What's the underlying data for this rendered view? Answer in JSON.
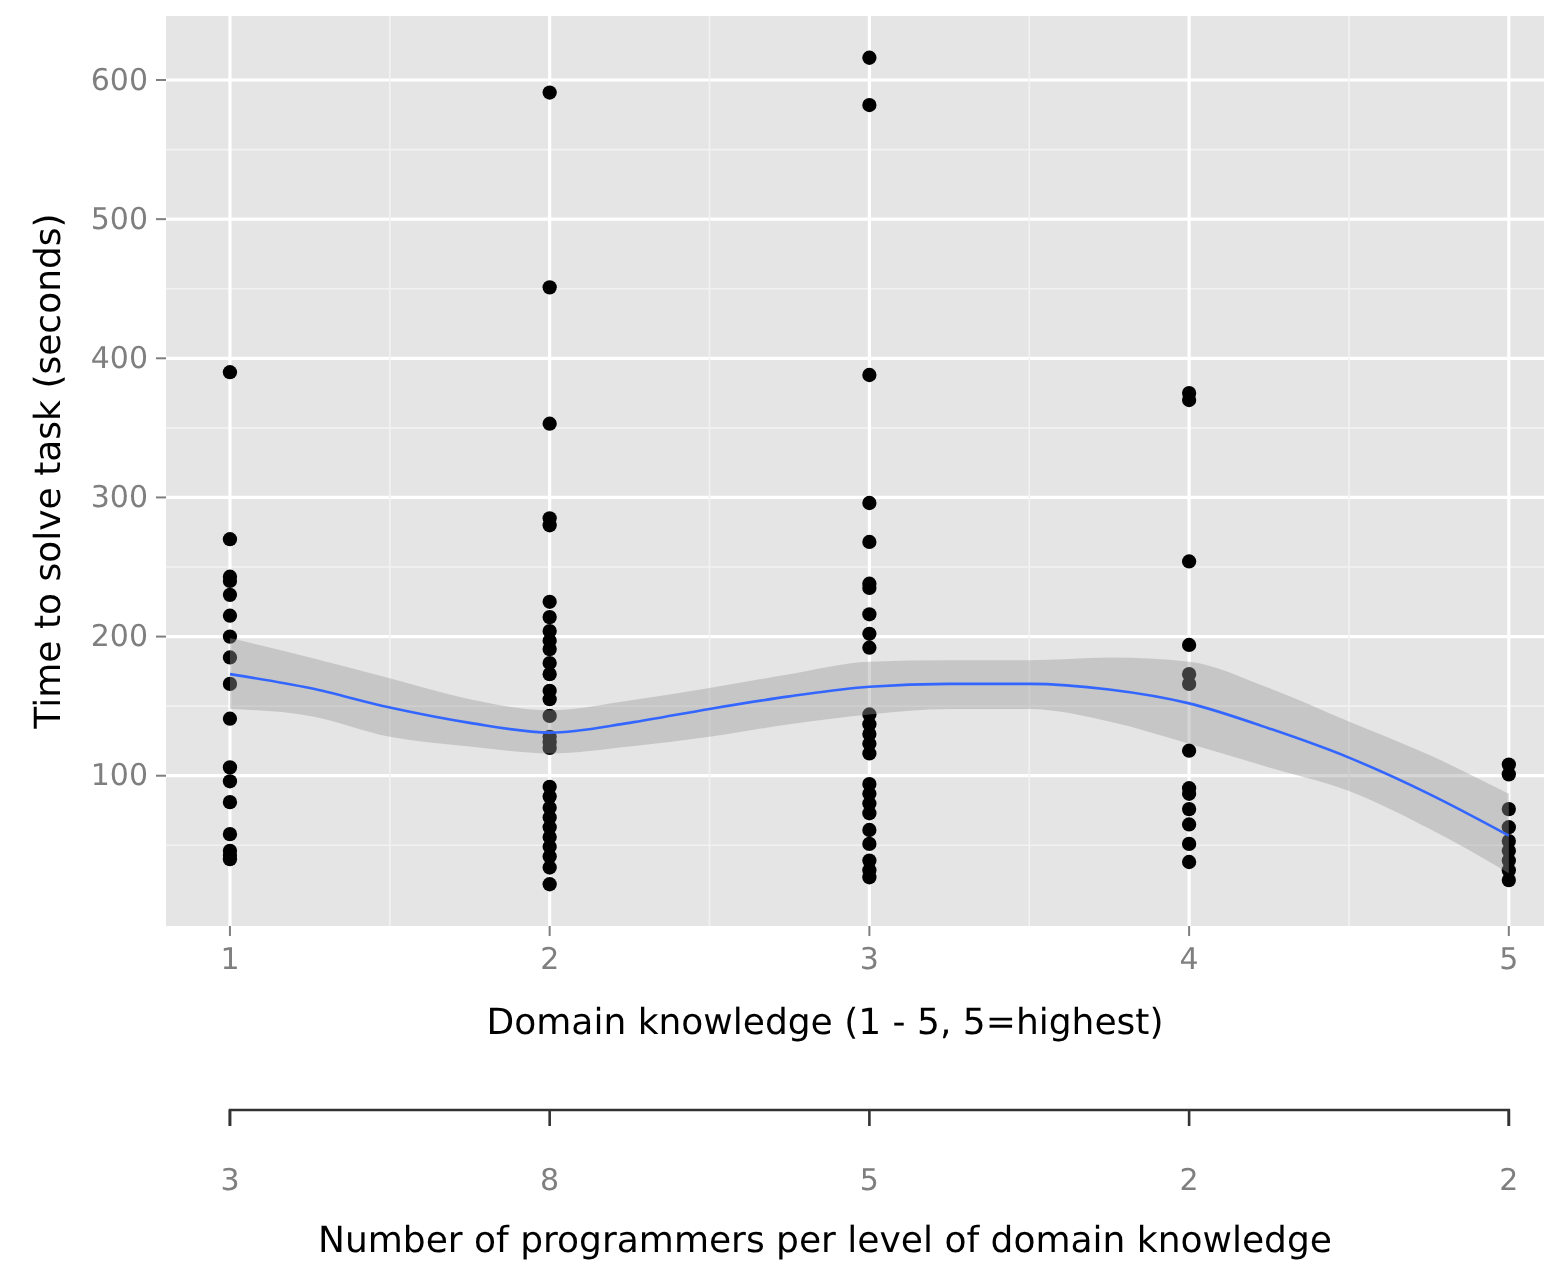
{
  "chart_data": {
    "type": "scatter",
    "xlabel": "Domain knowledge (1 - 5, 5=highest)",
    "ylabel": "Time to solve task  (seconds)",
    "x2label": "Number of programmers per level of domain knowledge",
    "xlim": [
      0.8,
      5.11
    ],
    "xticks": [
      1,
      2,
      3,
      4,
      5
    ],
    "ylim": [
      -8,
      646
    ],
    "yticks": [
      100,
      200,
      300,
      400,
      500,
      600
    ],
    "annotations": [
      "3",
      "8",
      "5",
      "2",
      "2"
    ],
    "grid": true,
    "marker": "circle",
    "series": [
      {
        "color": "#000000",
        "x": [
          1,
          1,
          1,
          1,
          1,
          1,
          1,
          1,
          1,
          1,
          1,
          1,
          1,
          1,
          1,
          1,
          1,
          2,
          2,
          2,
          2,
          2,
          2,
          2,
          2,
          2,
          2,
          2,
          2,
          2,
          2,
          2,
          2,
          2,
          2,
          2,
          2,
          2,
          2,
          2,
          2,
          2,
          2,
          2,
          2,
          3,
          3,
          3,
          3,
          3,
          3,
          3,
          3,
          3,
          3,
          3,
          3,
          3,
          3,
          3,
          3,
          3,
          3,
          3,
          3,
          3,
          3,
          3,
          3,
          4,
          4,
          4,
          4,
          4,
          4,
          4,
          4,
          4,
          4,
          4,
          4,
          4,
          5,
          5,
          5,
          5,
          5,
          5,
          5,
          5,
          5
        ],
        "values": [
          390,
          270,
          243,
          240,
          230,
          215,
          200,
          185,
          166,
          141,
          106,
          96,
          81,
          58,
          46,
          43,
          40,
          591,
          451,
          353,
          285,
          280,
          225,
          214,
          204,
          197,
          191,
          181,
          173,
          161,
          155,
          143,
          128,
          124,
          120,
          92,
          85,
          77,
          70,
          63,
          56,
          49,
          42,
          34,
          22,
          616,
          582,
          388,
          296,
          268,
          238,
          235,
          216,
          202,
          192,
          144,
          137,
          130,
          123,
          116,
          94,
          87,
          80,
          73,
          61,
          51,
          39,
          32,
          27,
          375,
          370,
          254,
          194,
          173,
          166,
          118,
          91,
          87,
          76,
          65,
          51,
          38,
          108,
          101,
          76,
          63,
          53,
          46,
          39,
          32,
          25
        ]
      },
      {
        "type": "line",
        "color": "#3366ff",
        "marker": "none",
        "line_style": "solid",
        "x": [
          1,
          1.25,
          1.5,
          1.75,
          2,
          2.25,
          2.5,
          2.75,
          3,
          3.25,
          3.5,
          3.75,
          4,
          4.25,
          4.5,
          4.75,
          5
        ],
        "values": [
          173,
          163,
          149,
          138,
          131,
          138,
          148,
          157,
          164,
          166,
          166,
          162,
          152,
          134,
          113,
          87,
          57
        ],
        "lower": [
          148,
          143,
          128,
          121,
          116,
          121,
          128,
          137,
          144,
          148,
          148,
          139,
          123,
          106,
          89,
          62,
          30
        ],
        "upper": [
          199,
          185,
          170,
          155,
          147,
          154,
          163,
          173,
          182,
          183,
          183,
          185,
          182,
          163,
          139,
          115,
          87
        ]
      }
    ]
  }
}
